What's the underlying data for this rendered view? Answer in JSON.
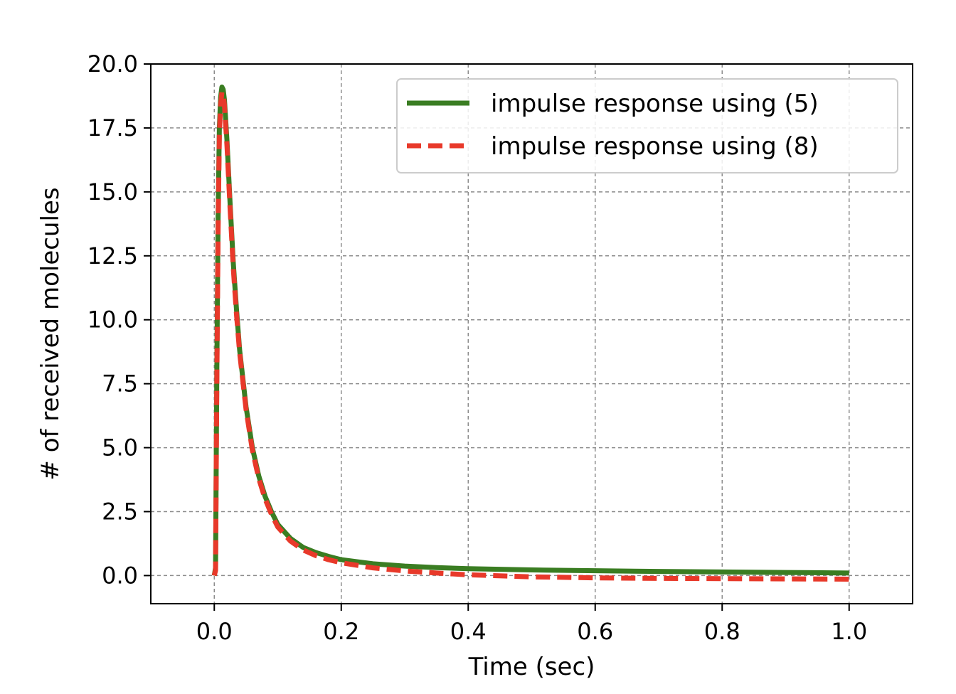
{
  "chart_data": {
    "type": "line",
    "title": "",
    "xlabel": "Time (sec)",
    "ylabel": "# of received molecules",
    "xlim": [
      -0.1,
      1.1
    ],
    "ylim": [
      -1.1,
      20.0
    ],
    "xticks": [
      0.0,
      0.2,
      0.4,
      0.6,
      0.8,
      1.0
    ],
    "xtick_labels": [
      "0.0",
      "0.2",
      "0.4",
      "0.6",
      "0.8",
      "1.0"
    ],
    "yticks": [
      0.0,
      2.5,
      5.0,
      7.5,
      10.0,
      12.5,
      15.0,
      17.5,
      20.0
    ],
    "ytick_labels": [
      "0.0",
      "2.5",
      "5.0",
      "7.5",
      "10.0",
      "12.5",
      "15.0",
      "17.5",
      "20.0"
    ],
    "grid": true,
    "legend_position": "top-right",
    "series": [
      {
        "name": "impulse response using (5)",
        "color": "#3a7d22",
        "style": "solid",
        "x": [
          0.0,
          0.002,
          0.004,
          0.006,
          0.008,
          0.01,
          0.012,
          0.014,
          0.016,
          0.02,
          0.025,
          0.03,
          0.035,
          0.04,
          0.05,
          0.06,
          0.07,
          0.08,
          0.09,
          0.1,
          0.12,
          0.14,
          0.16,
          0.18,
          0.2,
          0.25,
          0.3,
          0.35,
          0.4,
          0.5,
          0.6,
          0.7,
          0.8,
          0.9,
          1.0
        ],
        "y": [
          0.0,
          0.3,
          8.0,
          14.0,
          17.5,
          18.7,
          19.1,
          19.0,
          18.6,
          17.0,
          14.5,
          12.2,
          10.4,
          8.8,
          6.6,
          5.0,
          3.9,
          3.1,
          2.5,
          2.0,
          1.45,
          1.1,
          0.9,
          0.75,
          0.62,
          0.46,
          0.37,
          0.31,
          0.27,
          0.22,
          0.19,
          0.16,
          0.14,
          0.12,
          0.1
        ]
      },
      {
        "name": "impulse response using (8)",
        "color": "#e8392a",
        "style": "dashed",
        "x": [
          0.0,
          0.002,
          0.004,
          0.006,
          0.008,
          0.01,
          0.012,
          0.014,
          0.016,
          0.02,
          0.025,
          0.03,
          0.035,
          0.04,
          0.05,
          0.06,
          0.07,
          0.08,
          0.09,
          0.1,
          0.12,
          0.14,
          0.16,
          0.18,
          0.2,
          0.25,
          0.3,
          0.35,
          0.4,
          0.5,
          0.6,
          0.7,
          0.8,
          0.9,
          1.0
        ],
        "y": [
          0.0,
          0.2,
          7.5,
          13.5,
          17.2,
          18.4,
          18.9,
          18.8,
          18.4,
          16.8,
          14.3,
          12.0,
          10.2,
          8.7,
          6.5,
          4.9,
          3.8,
          3.0,
          2.4,
          1.9,
          1.35,
          1.0,
          0.78,
          0.62,
          0.5,
          0.3,
          0.18,
          0.1,
          0.03,
          -0.05,
          -0.09,
          -0.11,
          -0.12,
          -0.13,
          -0.14
        ]
      }
    ]
  }
}
